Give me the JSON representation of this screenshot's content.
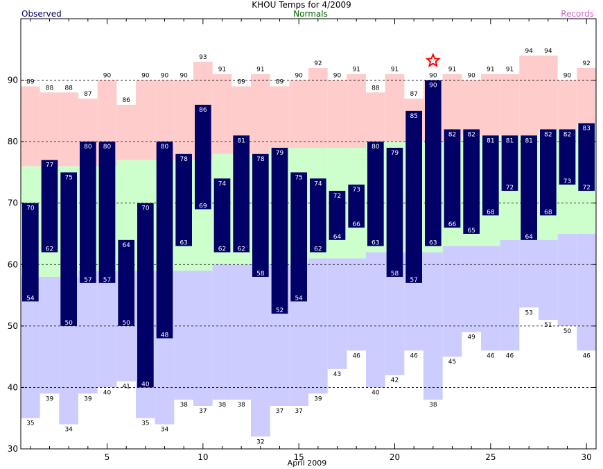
{
  "chart_data": {
    "type": "bar",
    "title": "KHOU Temps for 4/2009",
    "xlabel": "April 2009",
    "ylabel": "",
    "ylim": [
      30,
      100
    ],
    "xlim": [
      0.5,
      30.5
    ],
    "grid": "horizontal dashed at y ticks",
    "legend": {
      "observed": "Observed",
      "normals": "Normals",
      "records": "Records"
    },
    "yticks": [
      "30",
      "40",
      "50",
      "60",
      "70",
      "80",
      "90"
    ],
    "xticks": [
      "5",
      "10",
      "15",
      "20",
      "25",
      "30"
    ],
    "xtick_values": [
      5,
      10,
      15,
      20,
      25,
      30
    ],
    "ytick_values": [
      30,
      40,
      50,
      60,
      70,
      80,
      90
    ],
    "days": [
      1,
      2,
      3,
      4,
      5,
      6,
      7,
      8,
      9,
      10,
      11,
      12,
      13,
      14,
      15,
      16,
      17,
      18,
      19,
      20,
      21,
      22,
      23,
      24,
      25,
      26,
      27,
      28,
      29,
      30
    ],
    "record_high": [
      89,
      88,
      88,
      87,
      90,
      86,
      90,
      90,
      90,
      93,
      91,
      89,
      91,
      89,
      90,
      92,
      90,
      91,
      88,
      91,
      87,
      90,
      91,
      90,
      91,
      91,
      94,
      94,
      90,
      92
    ],
    "record_low": [
      35,
      39,
      34,
      39,
      40,
      41,
      35,
      34,
      38,
      37,
      38,
      38,
      32,
      37,
      37,
      39,
      43,
      46,
      40,
      42,
      46,
      38,
      45,
      49,
      46,
      46,
      53,
      51,
      50,
      46
    ],
    "normal_high": [
      76,
      76,
      76,
      76,
      76,
      77,
      77,
      77,
      77,
      77,
      78,
      78,
      78,
      79,
      79,
      79,
      79,
      79,
      80,
      80,
      80,
      80,
      80,
      81,
      81,
      81,
      81,
      82,
      82,
      83
    ],
    "normal_low": [
      58,
      58,
      58,
      59,
      59,
      59,
      59,
      59,
      59,
      59,
      60,
      60,
      60,
      60,
      60,
      61,
      61,
      61,
      62,
      62,
      62,
      62,
      63,
      63,
      63,
      64,
      64,
      64,
      65,
      65
    ],
    "series": [
      {
        "name": "Observed",
        "role": "high",
        "values": [
          70,
          77,
          75,
          80,
          80,
          64,
          70,
          80,
          78,
          86,
          74,
          81,
          78,
          79,
          75,
          74,
          72,
          73,
          80,
          79,
          85,
          90,
          82,
          82,
          81,
          81,
          81,
          82,
          82,
          83
        ]
      },
      {
        "name": "Observed",
        "role": "low",
        "values": [
          54,
          62,
          50,
          57,
          57,
          50,
          40,
          48,
          63,
          69,
          62,
          62,
          58,
          52,
          54,
          62,
          64,
          66,
          63,
          58,
          57,
          63,
          66,
          65,
          68,
          72,
          64,
          68,
          73,
          72
        ]
      }
    ],
    "record_marker_day": 22,
    "colors": {
      "observed": "#000066",
      "record_high_band": "#ffcccc",
      "normal_band": "#ccffcc",
      "record_low_band": "#ccccff",
      "legend_observed": "#000066",
      "legend_normals": "#006600",
      "legend_records": "#cc66cc",
      "star": "#ff0000"
    }
  }
}
